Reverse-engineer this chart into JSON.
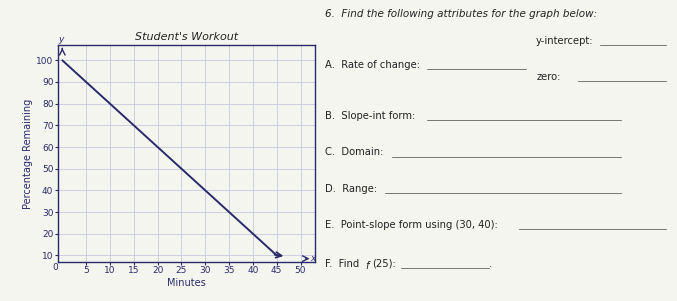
{
  "title": "Student's Workout",
  "xlabel": "Minutes",
  "ylabel": "Percentage Remaining",
  "line_x": [
    0,
    45
  ],
  "line_y": [
    100,
    10
  ],
  "xlim": [
    -1,
    53
  ],
  "ylim": [
    7,
    107
  ],
  "xticks": [
    5,
    10,
    15,
    20,
    25,
    30,
    35,
    40,
    45,
    50
  ],
  "yticks": [
    10,
    20,
    30,
    40,
    50,
    60,
    70,
    80,
    90,
    100
  ],
  "line_color": "#2a2a6a",
  "grid_color": "#c8c8e0",
  "axis_color": "#2a2a6a",
  "bg_color": "#f5f5f0",
  "box_color": "#2a2a6a",
  "title_fontsize": 8,
  "label_fontsize": 7,
  "tick_fontsize": 6.5,
  "header": "6.  Find the following attributes for the graph below:",
  "text_color": "#222222"
}
